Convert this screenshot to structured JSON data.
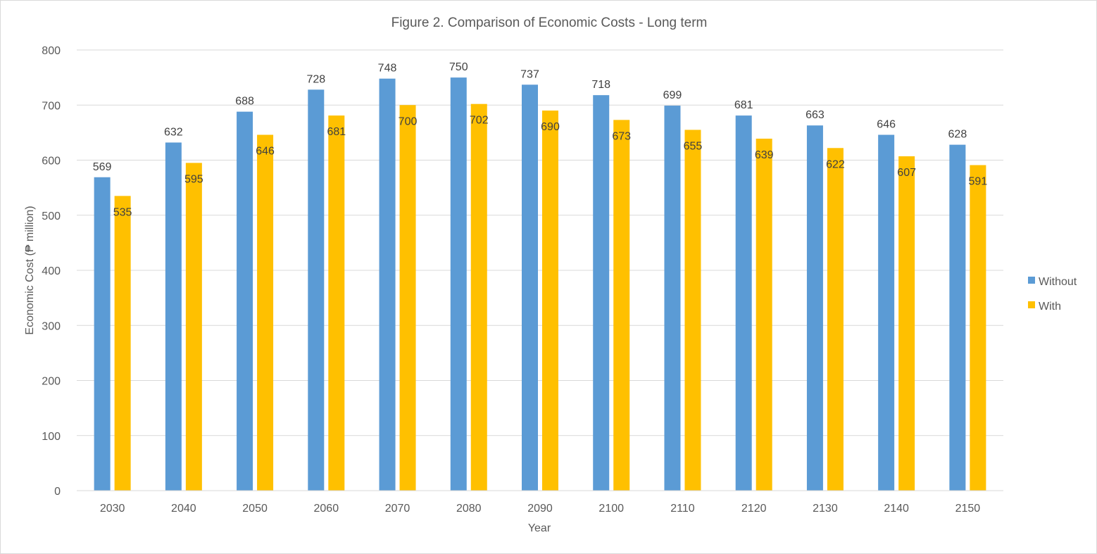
{
  "chart_data": {
    "type": "bar",
    "title": "Figure 2. Comparison of Economic Costs - Long term",
    "xlabel": "Year",
    "ylabel": "Economic Cost (₱ million)",
    "categories": [
      "2030",
      "2040",
      "2050",
      "2060",
      "2070",
      "2080",
      "2090",
      "2100",
      "2110",
      "2120",
      "2130",
      "2140",
      "2150"
    ],
    "series": [
      {
        "name": "Without",
        "color": "#5b9bd5",
        "values": [
          569,
          632,
          688,
          728,
          748,
          750,
          737,
          718,
          699,
          681,
          663,
          646,
          628
        ]
      },
      {
        "name": "With",
        "color": "#ffc000",
        "values": [
          535,
          595,
          646,
          681,
          700,
          702,
          690,
          673,
          655,
          639,
          622,
          607,
          591
        ]
      }
    ],
    "ylim": [
      0,
      800
    ],
    "yticks": [
      0,
      100,
      200,
      300,
      400,
      500,
      600,
      700,
      800
    ],
    "grid": true,
    "legend_position": "right"
  }
}
